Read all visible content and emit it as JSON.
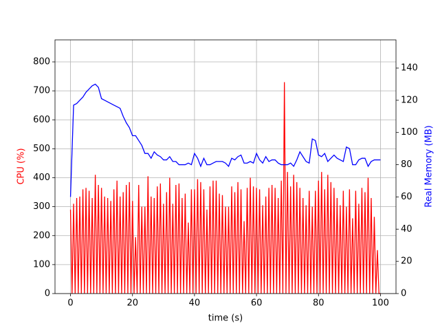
{
  "chart_data": {
    "type": "line",
    "xlabel": "time (s)",
    "ylabel": "CPU (%)",
    "y2label": "Real Memory (MB)",
    "xlim": [
      -5,
      105
    ],
    "xticks": [
      0,
      20,
      40,
      60,
      80,
      100
    ],
    "ylim": [
      0,
      876
    ],
    "yticks": [
      0,
      100,
      200,
      300,
      400,
      500,
      600,
      700,
      800
    ],
    "y2lim": [
      0,
      157.5
    ],
    "y2ticks": [
      0,
      20,
      40,
      60,
      80,
      100,
      120,
      140
    ],
    "grid": true,
    "series": [
      {
        "name": "CPU (%)",
        "color": "#ff0000",
        "x": [
          0,
          0.5,
          1,
          1.5,
          2,
          2.5,
          3,
          3.5,
          4,
          4.5,
          5,
          5.5,
          6,
          6.5,
          7,
          7.5,
          8,
          8.5,
          9,
          9.5,
          10,
          10.5,
          11,
          11.5,
          12,
          12.5,
          13,
          13.5,
          14,
          14.5,
          15,
          15.5,
          16,
          16.5,
          17,
          17.5,
          18,
          18.5,
          19,
          19.5,
          20,
          20.5,
          21,
          21.5,
          22,
          22.5,
          23,
          23.5,
          24,
          24.5,
          25,
          25.5,
          26,
          26.5,
          27,
          27.5,
          28,
          28.5,
          29,
          29.5,
          30,
          30.5,
          31,
          31.5,
          32,
          32.5,
          33,
          33.5,
          34,
          34.5,
          35,
          35.5,
          36,
          36.5,
          37,
          37.5,
          38,
          38.5,
          39,
          39.5,
          40,
          40.5,
          41,
          41.5,
          42,
          42.5,
          43,
          43.5,
          44,
          44.5,
          45,
          45.5,
          46,
          46.5,
          47,
          47.5,
          48,
          48.5,
          49,
          49.5,
          50,
          50.5,
          51,
          51.5,
          52,
          52.5,
          53,
          53.5,
          54,
          54.5,
          55,
          55.5,
          56,
          56.5,
          57,
          57.5,
          58,
          58.5,
          59,
          59.5,
          60,
          60.5,
          61,
          61.5,
          62,
          62.5,
          63,
          63.5,
          64,
          64.5,
          65,
          65.5,
          66,
          66.5,
          67,
          67.5,
          68,
          68.5,
          69,
          69.5,
          70,
          70.5,
          71,
          71.5,
          72,
          72.5,
          73,
          73.5,
          74,
          74.5,
          75,
          75.5,
          76,
          76.5,
          77,
          77.5,
          78,
          78.5,
          79,
          79.5,
          80,
          80.5,
          81,
          81.5,
          82,
          82.5,
          83,
          83.5,
          84,
          84.5,
          85,
          85.5,
          86,
          86.5,
          87,
          87.5,
          88,
          88.5,
          89,
          89.5,
          90,
          90.5,
          91,
          91.5,
          92,
          92.5,
          93,
          93.5,
          94,
          94.5,
          95,
          95.5,
          96,
          96.5,
          97,
          97.5,
          98,
          98.5,
          99,
          99.5,
          100
        ],
        "values": [
          290,
          0,
          310,
          0,
          330,
          0,
          335,
          0,
          360,
          0,
          365,
          0,
          355,
          0,
          330,
          0,
          410,
          0,
          375,
          0,
          365,
          0,
          335,
          0,
          330,
          0,
          320,
          0,
          360,
          0,
          390,
          0,
          335,
          0,
          350,
          0,
          375,
          0,
          385,
          0,
          320,
          0,
          195,
          0,
          375,
          0,
          300,
          0,
          300,
          0,
          405,
          0,
          335,
          0,
          330,
          0,
          370,
          0,
          380,
          0,
          310,
          0,
          350,
          0,
          400,
          0,
          310,
          0,
          375,
          0,
          380,
          0,
          330,
          0,
          345,
          0,
          245,
          0,
          360,
          0,
          360,
          0,
          395,
          0,
          385,
          0,
          360,
          0,
          290,
          0,
          370,
          0,
          390,
          0,
          390,
          0,
          345,
          0,
          340,
          0,
          300,
          0,
          300,
          0,
          370,
          0,
          350,
          0,
          385,
          0,
          360,
          0,
          250,
          0,
          365,
          0,
          400,
          0,
          370,
          0,
          365,
          0,
          360,
          0,
          305,
          0,
          335,
          0,
          365,
          0,
          375,
          0,
          365,
          0,
          330,
          0,
          390,
          0,
          730,
          0,
          420,
          0,
          370,
          0,
          410,
          0,
          385,
          0,
          365,
          0,
          330,
          0,
          305,
          0,
          355,
          0,
          300,
          0,
          355,
          0,
          390,
          0,
          420,
          0,
          360,
          0,
          410,
          0,
          385,
          0,
          365,
          0,
          330,
          0,
          305,
          0,
          355,
          0,
          300,
          0,
          360,
          0,
          260,
          0,
          355,
          0,
          310,
          0,
          365,
          0,
          350,
          0,
          400,
          0,
          330,
          0,
          265,
          0,
          150,
          0,
          0
        ]
      },
      {
        "name": "Real Memory (MB)",
        "color": "#0000ff",
        "axis": "y2",
        "x": [
          0,
          1,
          2,
          3,
          4,
          5,
          6,
          7,
          8,
          9,
          10,
          11,
          12,
          13,
          14,
          15,
          16,
          17,
          18,
          19,
          20,
          21,
          22,
          23,
          24,
          25,
          26,
          27,
          28,
          29,
          30,
          31,
          32,
          33,
          34,
          35,
          36,
          37,
          38,
          39,
          40,
          41,
          42,
          43,
          44,
          45,
          46,
          47,
          48,
          49,
          50,
          51,
          52,
          53,
          54,
          55,
          56,
          57,
          58,
          59,
          60,
          61,
          62,
          63,
          64,
          65,
          66,
          67,
          68,
          69,
          70,
          71,
          72,
          73,
          74,
          75,
          76,
          77,
          78,
          79,
          80,
          81,
          82,
          83,
          84,
          85,
          86,
          87,
          88,
          89,
          90,
          91,
          92,
          93,
          94,
          95,
          96,
          97,
          98,
          99,
          100
        ],
        "values": [
          60,
          117,
          118,
          120,
          122,
          125,
          127,
          129,
          130,
          128,
          121,
          120,
          119,
          118,
          117,
          116,
          115,
          110,
          106,
          103,
          98,
          98,
          95,
          92,
          87,
          87,
          84,
          88,
          86,
          85,
          83,
          83,
          85,
          82,
          82,
          80,
          80,
          80,
          81,
          80,
          87,
          84,
          79,
          84,
          80,
          80,
          81,
          82,
          82,
          82,
          81,
          79,
          84,
          83,
          85,
          86,
          81,
          81,
          82,
          81,
          87,
          83,
          81,
          85,
          82,
          83,
          83,
          81,
          80,
          80,
          80,
          81,
          79,
          83,
          88,
          85,
          82,
          81,
          96,
          95,
          86,
          85,
          87,
          82,
          84,
          86,
          84,
          83,
          82,
          91,
          90,
          80,
          80,
          83,
          84,
          84,
          79,
          82,
          83,
          83,
          83
        ]
      }
    ]
  }
}
